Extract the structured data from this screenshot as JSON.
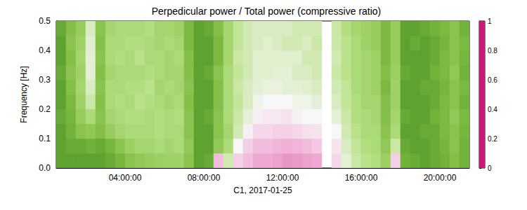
{
  "chart_data": {
    "type": "heatmap",
    "title": "Perpedicular power / Total power (compressive ratio)",
    "xlabel": "C1, 2017-01-25",
    "ylabel": "Frequency [Hz]",
    "xlim": [
      0.5,
      21.5
    ],
    "xticks": [
      {
        "value": 4,
        "label": "04:00:00"
      },
      {
        "value": 8,
        "label": "08:00:00"
      },
      {
        "value": 12,
        "label": "12:00:00"
      },
      {
        "value": 16,
        "label": "16:00:00"
      },
      {
        "value": 20,
        "label": "20:00:00"
      }
    ],
    "ylim": [
      0,
      0.5
    ],
    "yticks": [
      {
        "value": 0,
        "label": "0.0"
      },
      0.1,
      0.2,
      0.3,
      0.4,
      0.5
    ],
    "grid": false,
    "x_edges": [
      0.5,
      1,
      1.5,
      2,
      2.5,
      3,
      3.5,
      4,
      4.5,
      5,
      5.5,
      6,
      6.5,
      7,
      7.5,
      8,
      8.5,
      9,
      9.5,
      10,
      10.5,
      11,
      11.5,
      12,
      12.5,
      13,
      13.5,
      14,
      14.5,
      15,
      15.5,
      16,
      16.5,
      17,
      17.5,
      18,
      18.5,
      19,
      19.5,
      20,
      20.5,
      21,
      21.5
    ],
    "y_edges": [
      0,
      0.05,
      0.1,
      0.15,
      0.2,
      0.25,
      0.3,
      0.35,
      0.4,
      0.45,
      0.5
    ],
    "cells": [
      [
        0.9,
        0.9,
        0.9,
        0.88,
        0.9,
        0.9,
        0.88,
        0.9,
        0.9,
        0.88
      ],
      [
        0.9,
        0.88,
        0.86,
        0.85,
        0.84,
        0.82,
        0.8,
        0.82,
        0.8,
        0.82
      ],
      [
        0.9,
        0.88,
        0.8,
        0.76,
        0.74,
        0.72,
        0.74,
        0.72,
        0.74,
        0.76
      ],
      [
        0.9,
        0.86,
        0.78,
        0.7,
        0.62,
        0.58,
        0.55,
        0.55,
        0.56,
        0.58
      ],
      [
        0.9,
        0.88,
        0.82,
        0.8,
        0.82,
        0.8,
        0.82,
        0.8,
        0.82,
        0.8
      ],
      [
        0.88,
        0.85,
        0.76,
        0.72,
        0.7,
        0.7,
        0.72,
        0.7,
        0.7,
        0.72
      ],
      [
        0.85,
        0.8,
        0.72,
        0.7,
        0.68,
        0.7,
        0.7,
        0.68,
        0.7,
        0.7
      ],
      [
        0.8,
        0.75,
        0.7,
        0.68,
        0.7,
        0.68,
        0.7,
        0.7,
        0.68,
        0.7
      ],
      [
        0.78,
        0.72,
        0.7,
        0.68,
        0.66,
        0.68,
        0.7,
        0.66,
        0.68,
        0.7
      ],
      [
        0.76,
        0.72,
        0.7,
        0.7,
        0.68,
        0.66,
        0.68,
        0.7,
        0.7,
        0.68
      ],
      [
        0.75,
        0.7,
        0.68,
        0.68,
        0.7,
        0.72,
        0.7,
        0.7,
        0.72,
        0.72
      ],
      [
        0.74,
        0.72,
        0.7,
        0.7,
        0.72,
        0.7,
        0.72,
        0.72,
        0.7,
        0.72
      ],
      [
        0.74,
        0.7,
        0.7,
        0.68,
        0.7,
        0.72,
        0.72,
        0.7,
        0.72,
        0.74
      ],
      [
        0.8,
        0.78,
        0.8,
        0.8,
        0.82,
        0.8,
        0.82,
        0.82,
        0.84,
        0.84
      ],
      [
        0.9,
        0.9,
        0.9,
        0.9,
        0.9,
        0.9,
        0.9,
        0.9,
        0.9,
        0.9
      ],
      [
        0.88,
        0.9,
        0.9,
        0.88,
        0.9,
        0.9,
        0.88,
        0.9,
        0.9,
        0.88
      ],
      [
        0.35,
        0.78,
        0.8,
        0.8,
        0.82,
        0.82,
        0.8,
        0.84,
        0.84,
        0.82
      ],
      [
        0.6,
        0.7,
        0.72,
        0.7,
        0.7,
        0.7,
        0.7,
        0.72,
        0.72,
        0.72
      ],
      [
        0.4,
        0.5,
        0.6,
        0.62,
        0.64,
        0.62,
        0.64,
        0.62,
        0.64,
        0.64
      ],
      [
        0.35,
        0.4,
        0.48,
        0.55,
        0.58,
        0.58,
        0.6,
        0.6,
        0.6,
        0.6
      ],
      [
        0.3,
        0.35,
        0.42,
        0.48,
        0.52,
        0.55,
        0.56,
        0.56,
        0.58,
        0.58
      ],
      [
        0.3,
        0.35,
        0.42,
        0.46,
        0.5,
        0.54,
        0.56,
        0.56,
        0.56,
        0.58
      ],
      [
        0.28,
        0.33,
        0.4,
        0.46,
        0.5,
        0.54,
        0.55,
        0.56,
        0.58,
        0.58
      ],
      [
        0.25,
        0.32,
        0.4,
        0.45,
        0.5,
        0.55,
        0.55,
        0.56,
        0.6,
        0.58
      ],
      [
        0.26,
        0.33,
        0.42,
        0.48,
        0.52,
        0.55,
        0.58,
        0.56,
        0.6,
        0.6
      ],
      [
        0.28,
        0.35,
        0.44,
        0.5,
        0.52,
        0.56,
        0.58,
        0.6,
        0.58,
        0.6
      ],
      [
        0.3,
        0.38,
        0.45,
        0.5,
        0.55,
        0.58,
        0.6,
        0.6,
        0.62,
        0.6
      ],
      null,
      [
        0.42,
        0.45,
        0.5,
        0.55,
        0.58,
        0.6,
        0.62,
        0.6,
        0.62,
        0.62
      ],
      [
        0.55,
        0.58,
        0.6,
        0.62,
        0.64,
        0.64,
        0.66,
        0.66,
        0.66,
        0.68
      ],
      [
        0.62,
        0.64,
        0.66,
        0.68,
        0.68,
        0.7,
        0.7,
        0.7,
        0.7,
        0.72
      ],
      [
        0.66,
        0.68,
        0.7,
        0.7,
        0.72,
        0.72,
        0.72,
        0.72,
        0.74,
        0.74
      ],
      [
        0.68,
        0.7,
        0.7,
        0.72,
        0.72,
        0.74,
        0.74,
        0.74,
        0.76,
        0.76
      ],
      [
        0.75,
        0.78,
        0.8,
        0.82,
        0.82,
        0.84,
        0.82,
        0.84,
        0.84,
        0.84
      ],
      [
        0.4,
        0.62,
        0.7,
        0.72,
        0.74,
        0.74,
        0.75,
        0.76,
        0.76,
        0.76
      ],
      [
        0.86,
        0.88,
        0.9,
        0.88,
        0.9,
        0.9,
        0.88,
        0.9,
        0.9,
        0.9
      ],
      [
        0.88,
        0.9,
        0.9,
        0.9,
        0.9,
        0.9,
        0.9,
        0.9,
        0.88,
        0.9
      ],
      [
        0.9,
        0.9,
        0.88,
        0.9,
        0.9,
        0.88,
        0.9,
        0.9,
        0.9,
        0.88
      ],
      [
        0.88,
        0.88,
        0.88,
        0.86,
        0.88,
        0.88,
        0.86,
        0.88,
        0.88,
        0.86
      ],
      [
        0.86,
        0.85,
        0.84,
        0.84,
        0.84,
        0.85,
        0.84,
        0.84,
        0.85,
        0.84
      ],
      [
        0.82,
        0.8,
        0.8,
        0.78,
        0.8,
        0.8,
        0.78,
        0.8,
        0.8,
        0.8
      ],
      [
        0.86,
        0.86,
        0.85,
        0.84,
        0.86,
        0.84,
        0.86,
        0.85,
        0.84,
        0.86
      ]
    ],
    "colorbar": {
      "range": [
        0,
        1
      ],
      "ticks": [
        0,
        0.2,
        0.4,
        0.6,
        0.8,
        1
      ]
    }
  }
}
